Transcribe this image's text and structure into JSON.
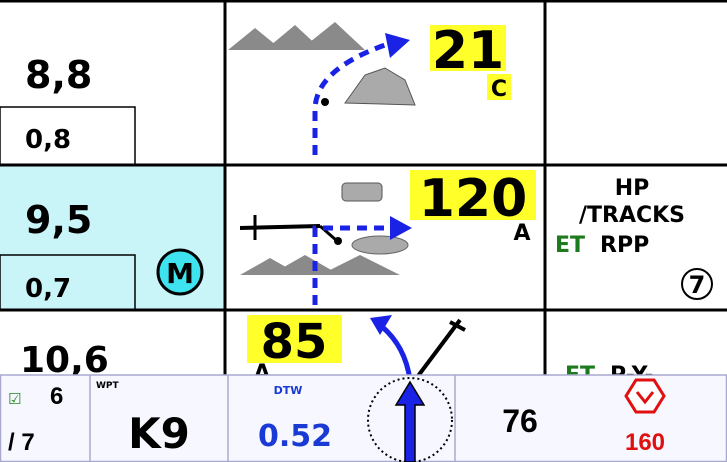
{
  "rows": [
    {
      "distance": "8,8",
      "sub": "0,8",
      "speed": "21",
      "speed_code": "C"
    },
    {
      "distance": "9,5",
      "sub": "0,7",
      "mode": "M",
      "speed": "120",
      "speed_code": "A",
      "info": [
        "HP",
        "/TRACKS"
      ],
      "status_green": "ET",
      "status": "RPP",
      "count": "7"
    },
    {
      "distance": "10,6",
      "speed": "85",
      "speed_code": "A",
      "status_green": "ET",
      "status": "P-Y-"
    }
  ],
  "footer": {
    "check": "☑",
    "index": "6",
    "total": "/ 7",
    "wpt_label": "WPT",
    "wpt": "K9",
    "dtw_label": "DTW",
    "dtw": "0.52",
    "value": "76",
    "limit": "160"
  }
}
